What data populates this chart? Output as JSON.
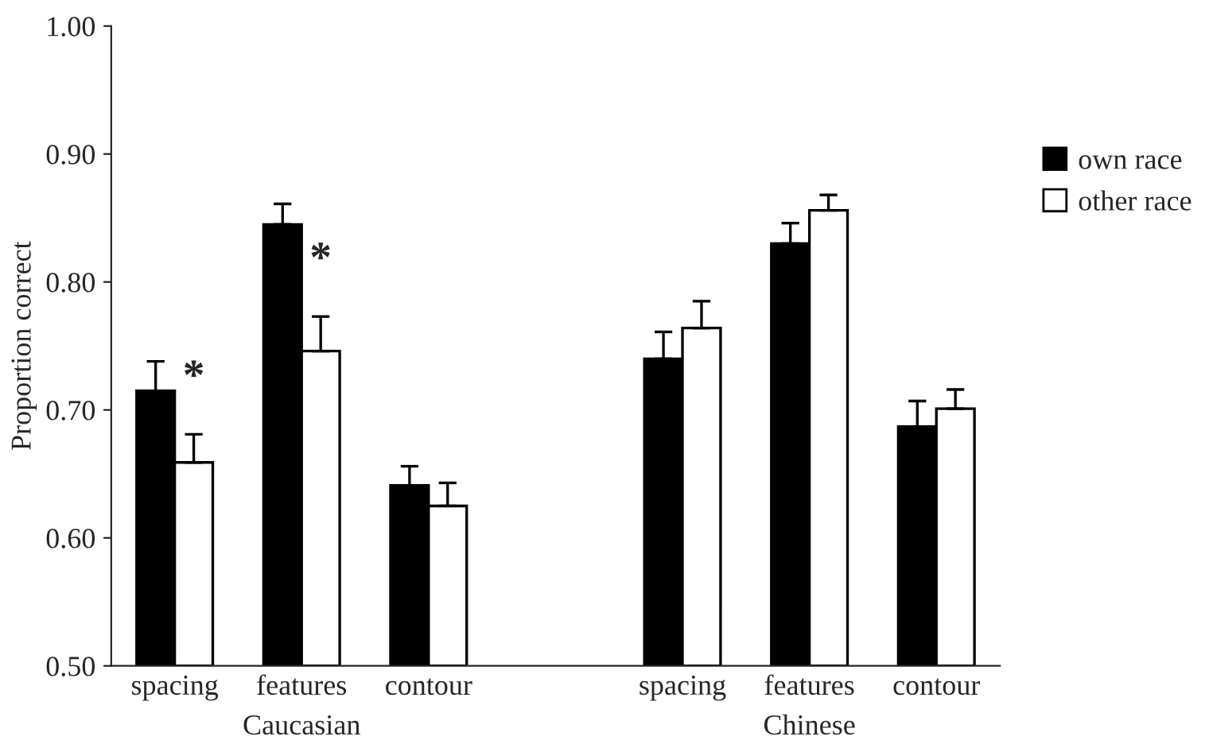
{
  "chart_data": {
    "type": "bar",
    "ylabel": "Proportion correct",
    "categories": [
      "spacing",
      "features",
      "contour",
      null,
      "spacing",
      "features",
      "contour"
    ],
    "series": [
      {
        "name": "own race",
        "color": "#000000",
        "values": [
          0.715,
          0.845,
          0.641,
          null,
          0.74,
          0.83,
          0.687
        ],
        "errors": [
          [
            0.715,
            0.738
          ],
          [
            0.845,
            0.861
          ],
          [
            0.641,
            0.656
          ],
          null,
          [
            0.74,
            0.761
          ],
          [
            0.83,
            0.846
          ],
          [
            0.687,
            0.707
          ]
        ]
      },
      {
        "name": "other race",
        "color": "#ffffff",
        "values": [
          0.659,
          0.746,
          0.625,
          null,
          0.764,
          0.856,
          0.701
        ],
        "errors": [
          [
            0.659,
            0.681
          ],
          [
            0.746,
            0.773
          ],
          [
            0.625,
            0.643
          ],
          null,
          [
            0.764,
            0.785
          ],
          [
            0.856,
            0.868
          ],
          [
            0.701,
            0.716
          ]
        ]
      }
    ],
    "annotations": [
      "Caucasian",
      "Chinese",
      "*",
      "*"
    ],
    "ylim": [
      0.5,
      1.0
    ],
    "yticks": [
      {
        "value": 0.5,
        "label": "0.50"
      },
      {
        "value": 0.6,
        "label": "0.60"
      },
      {
        "value": 0.7,
        "label": "0.70"
      },
      {
        "value": 0.8,
        "label": "0.80"
      },
      {
        "value": 0.9,
        "label": "0.90"
      },
      {
        "value": 1.0,
        "label": "1.00"
      }
    ],
    "grid": false,
    "legend": "right"
  }
}
